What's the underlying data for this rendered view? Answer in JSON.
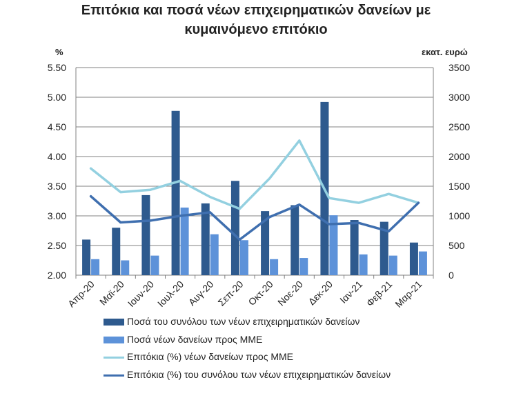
{
  "title_line1": "Επιτόκια και ποσά νέων επιχειρηματικών δανείων με",
  "title_line2": "κυμαινόμενο επιτόκιο",
  "left_unit": "%",
  "right_unit": "εκατ. ευρώ",
  "colors": {
    "bar_total": "#2E5A8E",
    "bar_sme": "#5D92D9",
    "line_sme": "#93D0E0",
    "line_total": "#3F6FAF",
    "grid": "#808080",
    "text": "#222222"
  },
  "chart_data": {
    "type": "bar",
    "categories": [
      "Απρ-20",
      "Μαϊ-20",
      "Ιουν-20",
      "Ιουλ-20",
      "Αυγ-20",
      "Σεπ-20",
      "Οκτ-20",
      "Νοε-20",
      "Δεκ-20",
      "Ιαν-21",
      "Φεβ-21",
      "Μαρ-21"
    ],
    "y_left": {
      "label": "%",
      "min": 2.0,
      "max": 5.5,
      "ticks": [
        "2.00",
        "2.50",
        "3.00",
        "3.50",
        "4.00",
        "4.50",
        "5.00",
        "5.50"
      ]
    },
    "y_right": {
      "label": "εκατ. ευρώ",
      "min": 0,
      "max": 3500,
      "ticks": [
        "0",
        "500",
        "1000",
        "1500",
        "2000",
        "2500",
        "3000",
        "3500"
      ]
    },
    "grid": true,
    "legend_position": "bottom",
    "series": [
      {
        "name": "Ποσά του συνόλου των νέων επιχειρηματικών δανείων",
        "type": "bar",
        "axis": "right",
        "values": [
          600,
          800,
          1350,
          2770,
          1210,
          1590,
          1080,
          1180,
          2920,
          930,
          900,
          550
        ]
      },
      {
        "name": "Ποσά νέων δανείων προς ΜΜΕ",
        "type": "bar",
        "axis": "right",
        "values": [
          270,
          250,
          330,
          1140,
          690,
          590,
          270,
          290,
          1010,
          350,
          330,
          400
        ]
      },
      {
        "name": "Επιτόκια (%) νέων δανείων προς ΜΜΕ",
        "type": "line",
        "axis": "left",
        "values": [
          3.8,
          3.4,
          3.44,
          3.59,
          3.32,
          3.12,
          3.63,
          4.27,
          3.3,
          3.22,
          3.37,
          3.22
        ]
      },
      {
        "name": "Επιτόκια (%) του συνόλου των νέων επιχειρηματικών δανείων",
        "type": "line",
        "axis": "left",
        "values": [
          3.33,
          2.89,
          2.92,
          3.0,
          3.06,
          2.6,
          2.98,
          3.19,
          2.86,
          2.88,
          2.74,
          3.22
        ]
      }
    ]
  }
}
